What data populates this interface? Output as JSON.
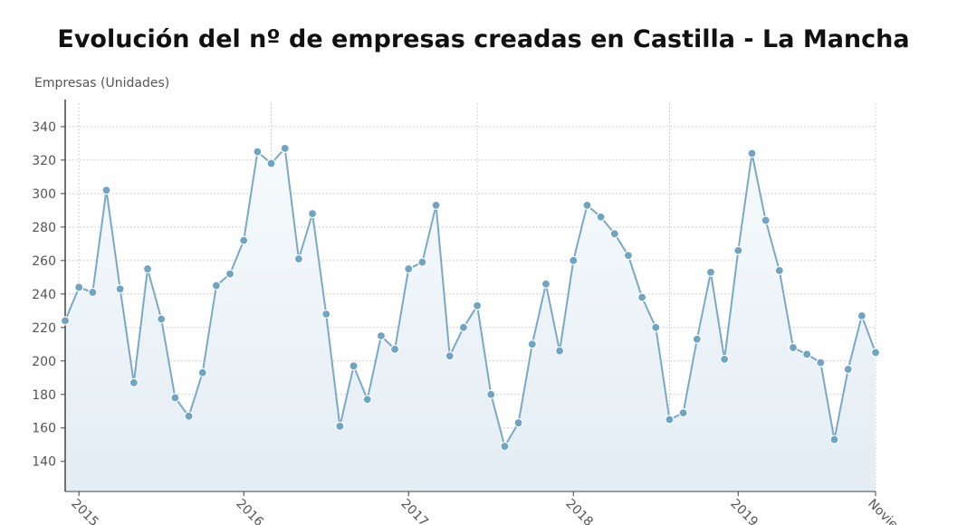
{
  "colors": {
    "line": "#7aa9c6",
    "marker": "#6fa4c3",
    "marker_stroke": "#ffffff",
    "area_top": "#f6fafc",
    "area_bottom": "#e3edf4",
    "grid": "#cfcfcf",
    "axis": "#444444",
    "text": "#555555"
  },
  "chart_data": {
    "type": "area",
    "title": "Evolución del nº de empresas creadas en Castilla - La Mancha",
    "ylabel": "Empresas (Unidades)",
    "xlabel": "",
    "ylim": [
      122,
      354
    ],
    "yticks": [
      140,
      160,
      180,
      200,
      220,
      240,
      260,
      280,
      300,
      320,
      340
    ],
    "grid": true,
    "legend": "none",
    "xticks": [
      {
        "label": "2015",
        "index": 1
      },
      {
        "label": "2016",
        "index": 13
      },
      {
        "label": "2017",
        "index": 25
      },
      {
        "label": "2018",
        "index": 37
      },
      {
        "label": "2019",
        "index": 49
      },
      {
        "label": "Novie",
        "index": 59
      }
    ],
    "vertical_grid_indices": [
      1,
      15,
      30,
      44,
      59
    ],
    "values": [
      224,
      244,
      241,
      302,
      243,
      187,
      255,
      225,
      178,
      167,
      193,
      245,
      252,
      272,
      325,
      318,
      327,
      261,
      288,
      228,
      161,
      197,
      177,
      215,
      207,
      255,
      259,
      293,
      203,
      220,
      233,
      180,
      149,
      163,
      210,
      246,
      206,
      260,
      293,
      286,
      276,
      263,
      238,
      220,
      165,
      169,
      213,
      253,
      201,
      266,
      324,
      284,
      254,
      208,
      204,
      199,
      153,
      195,
      227,
      205
    ]
  }
}
